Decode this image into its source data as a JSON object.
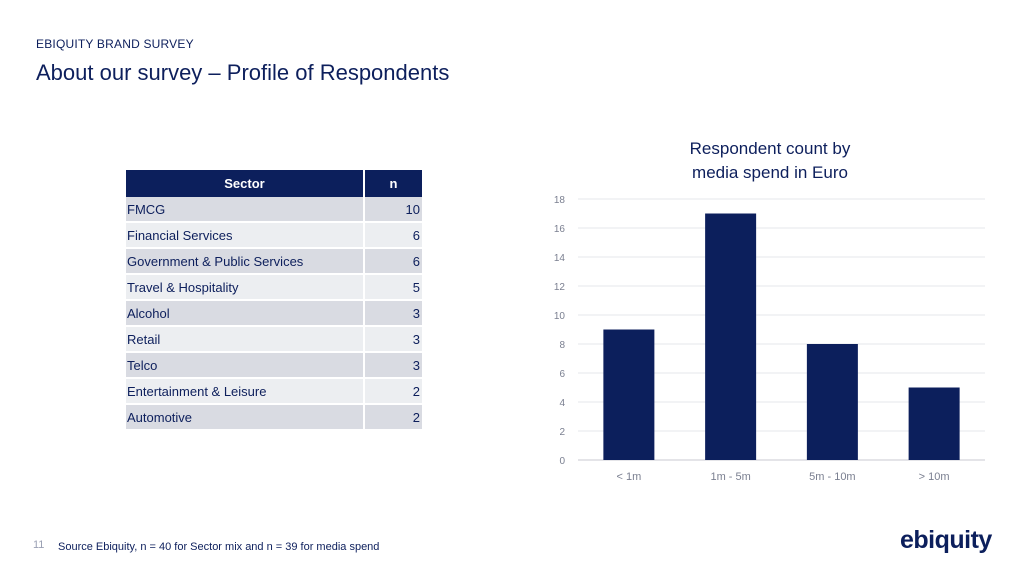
{
  "header": {
    "kicker": "EBIQUITY BRAND SURVEY",
    "title": "About our survey – Profile of Respondents"
  },
  "table": {
    "columns": [
      "Sector",
      "n"
    ],
    "rows": [
      {
        "sector": "FMCG",
        "n": "10"
      },
      {
        "sector": "Financial Services",
        "n": "6"
      },
      {
        "sector": "Government & Public Services",
        "n": "6"
      },
      {
        "sector": "Travel & Hospitality",
        "n": "5"
      },
      {
        "sector": "Alcohol",
        "n": "3"
      },
      {
        "sector": "Retail",
        "n": "3"
      },
      {
        "sector": "Telco",
        "n": "3"
      },
      {
        "sector": "Entertainment & Leisure",
        "n": "2"
      },
      {
        "sector": "Automotive",
        "n": "2"
      }
    ]
  },
  "chart_data": {
    "type": "bar",
    "title_lines": [
      "Respondent count by",
      "media spend in Euro"
    ],
    "categories": [
      "< 1m",
      "1m - 5m",
      "5m - 10m",
      "> 10m"
    ],
    "values": [
      9,
      17,
      8,
      5
    ],
    "ylim": [
      0,
      18
    ],
    "yticks": [
      0,
      2,
      4,
      6,
      8,
      10,
      12,
      14,
      16,
      18
    ],
    "grid": true,
    "bar_color": "#0c1f5c"
  },
  "footer": {
    "slide_number": "11",
    "source": "Source Ebiquity, n = 40 for Sector mix and n = 39 for media spend",
    "logo_text": "ebiquity"
  }
}
